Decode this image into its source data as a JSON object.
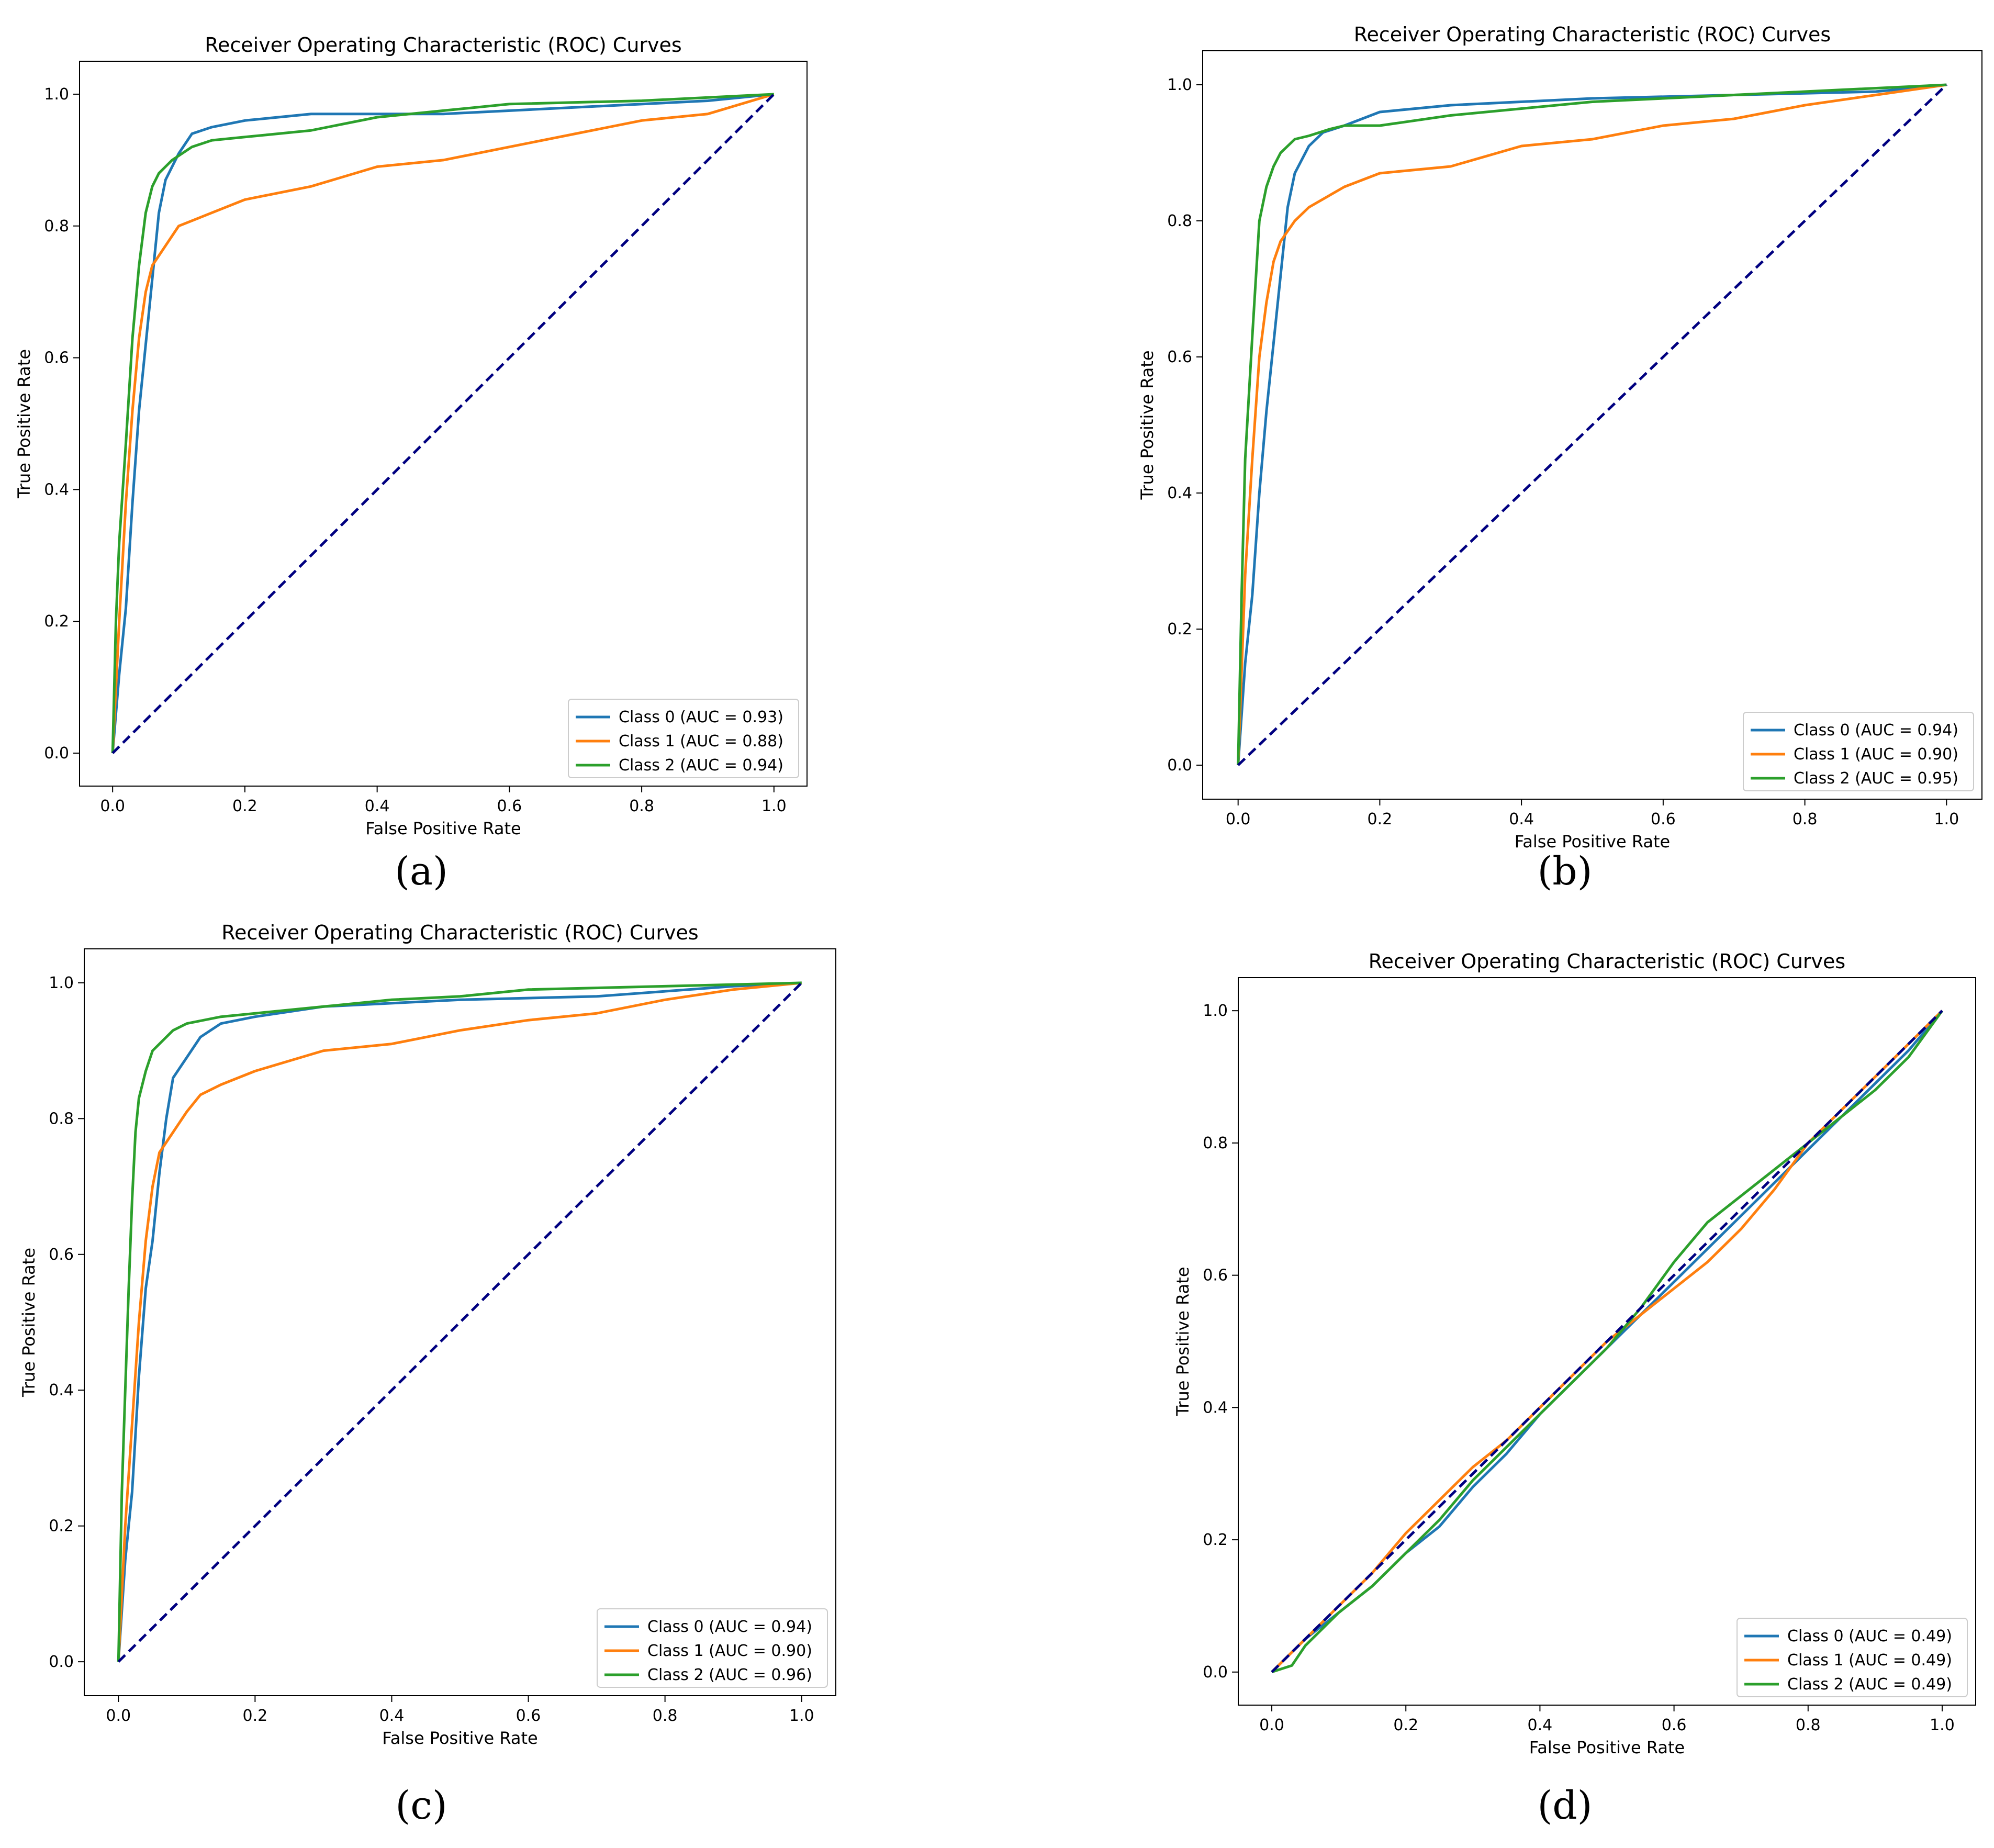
{
  "chart_data": [
    {
      "type": "line",
      "panel_label": "(a)",
      "title": "Receiver Operating Characteristic (ROC) Curves",
      "xlabel": "False Positive Rate",
      "ylabel": "True Positive Rate",
      "xlim": [
        0,
        1
      ],
      "ylim": [
        0,
        1
      ],
      "xticks": [
        "0.0",
        "0.2",
        "0.4",
        "0.6",
        "0.8",
        "1.0"
      ],
      "yticks": [
        "0.0",
        "0.2",
        "0.4",
        "0.6",
        "0.8",
        "1.0"
      ],
      "legend_position": "lower-right",
      "diagonal": {
        "x": [
          0,
          1
        ],
        "y": [
          0,
          1
        ],
        "color": "#000080",
        "style": "dashed"
      },
      "series": [
        {
          "name": "Class 0 (AUC = 0.93)",
          "color": "#1f77b4",
          "x": [
            0,
            0.01,
            0.02,
            0.03,
            0.04,
            0.05,
            0.06,
            0.07,
            0.08,
            0.1,
            0.12,
            0.15,
            0.2,
            0.3,
            0.5,
            0.7,
            0.9,
            1.0
          ],
          "y": [
            0,
            0.12,
            0.22,
            0.38,
            0.52,
            0.62,
            0.72,
            0.82,
            0.87,
            0.91,
            0.94,
            0.95,
            0.96,
            0.97,
            0.97,
            0.98,
            0.99,
            1.0
          ]
        },
        {
          "name": "Class 1 (AUC = 0.88)",
          "color": "#ff7f0e",
          "x": [
            0,
            0.01,
            0.02,
            0.03,
            0.04,
            0.05,
            0.06,
            0.08,
            0.1,
            0.15,
            0.2,
            0.3,
            0.4,
            0.5,
            0.6,
            0.7,
            0.8,
            0.9,
            1.0
          ],
          "y": [
            0,
            0.2,
            0.38,
            0.52,
            0.63,
            0.7,
            0.74,
            0.77,
            0.8,
            0.82,
            0.84,
            0.86,
            0.89,
            0.9,
            0.92,
            0.94,
            0.96,
            0.97,
            1.0
          ]
        },
        {
          "name": "Class 2 (AUC = 0.94)",
          "color": "#2ca02c",
          "x": [
            0,
            0.005,
            0.01,
            0.02,
            0.03,
            0.04,
            0.05,
            0.06,
            0.07,
            0.09,
            0.12,
            0.15,
            0.2,
            0.3,
            0.4,
            0.5,
            0.6,
            0.8,
            1.0
          ],
          "y": [
            0,
            0.2,
            0.32,
            0.47,
            0.63,
            0.74,
            0.82,
            0.86,
            0.88,
            0.9,
            0.92,
            0.93,
            0.935,
            0.945,
            0.965,
            0.975,
            0.985,
            0.99,
            1.0
          ]
        }
      ]
    },
    {
      "type": "line",
      "panel_label": "(b)",
      "title": "Receiver Operating Characteristic (ROC) Curves",
      "xlabel": "False Positive Rate",
      "ylabel": "True Positive Rate",
      "xlim": [
        0,
        1
      ],
      "ylim": [
        0,
        1
      ],
      "xticks": [
        "0.0",
        "0.2",
        "0.4",
        "0.6",
        "0.8",
        "1.0"
      ],
      "yticks": [
        "0.0",
        "0.2",
        "0.4",
        "0.6",
        "0.8",
        "1.0"
      ],
      "legend_position": "lower-right",
      "diagonal": {
        "x": [
          0,
          1
        ],
        "y": [
          0,
          1
        ],
        "color": "#000080",
        "style": "dashed"
      },
      "series": [
        {
          "name": "Class 0 (AUC = 0.94)",
          "color": "#1f77b4",
          "x": [
            0,
            0.01,
            0.02,
            0.03,
            0.04,
            0.05,
            0.06,
            0.07,
            0.08,
            0.1,
            0.12,
            0.15,
            0.2,
            0.3,
            0.5,
            0.7,
            0.9,
            1.0
          ],
          "y": [
            0,
            0.15,
            0.25,
            0.4,
            0.52,
            0.62,
            0.72,
            0.82,
            0.87,
            0.91,
            0.93,
            0.94,
            0.96,
            0.97,
            0.98,
            0.985,
            0.99,
            1.0
          ]
        },
        {
          "name": "Class 1 (AUC = 0.90)",
          "color": "#ff7f0e",
          "x": [
            0,
            0.01,
            0.02,
            0.03,
            0.04,
            0.05,
            0.06,
            0.08,
            0.1,
            0.15,
            0.2,
            0.3,
            0.4,
            0.5,
            0.6,
            0.7,
            0.8,
            0.9,
            1.0
          ],
          "y": [
            0,
            0.28,
            0.45,
            0.6,
            0.68,
            0.74,
            0.77,
            0.8,
            0.82,
            0.85,
            0.87,
            0.88,
            0.91,
            0.92,
            0.94,
            0.95,
            0.97,
            0.985,
            1.0
          ]
        },
        {
          "name": "Class 2 (AUC = 0.95)",
          "color": "#2ca02c",
          "x": [
            0,
            0.005,
            0.01,
            0.02,
            0.03,
            0.04,
            0.05,
            0.06,
            0.08,
            0.1,
            0.13,
            0.15,
            0.2,
            0.3,
            0.4,
            0.5,
            0.6,
            0.8,
            1.0
          ],
          "y": [
            0,
            0.25,
            0.45,
            0.63,
            0.8,
            0.85,
            0.88,
            0.9,
            0.92,
            0.925,
            0.935,
            0.94,
            0.94,
            0.955,
            0.965,
            0.975,
            0.98,
            0.99,
            1.0
          ]
        }
      ]
    },
    {
      "type": "line",
      "panel_label": "(c)",
      "title": "Receiver Operating Characteristic (ROC) Curves",
      "xlabel": "False Positive Rate",
      "ylabel": "True Positive Rate",
      "xlim": [
        0,
        1
      ],
      "ylim": [
        0,
        1
      ],
      "xticks": [
        "0.0",
        "0.2",
        "0.4",
        "0.6",
        "0.8",
        "1.0"
      ],
      "yticks": [
        "0.0",
        "0.2",
        "0.4",
        "0.6",
        "0.8",
        "1.0"
      ],
      "legend_position": "lower-right",
      "diagonal": {
        "x": [
          0,
          1
        ],
        "y": [
          0,
          1
        ],
        "color": "#000080",
        "style": "dashed"
      },
      "series": [
        {
          "name": "Class 0 (AUC = 0.94)",
          "color": "#1f77b4",
          "x": [
            0,
            0.01,
            0.02,
            0.03,
            0.04,
            0.05,
            0.06,
            0.07,
            0.08,
            0.1,
            0.12,
            0.15,
            0.2,
            0.3,
            0.5,
            0.7,
            0.9,
            1.0
          ],
          "y": [
            0,
            0.15,
            0.25,
            0.42,
            0.55,
            0.62,
            0.72,
            0.8,
            0.86,
            0.89,
            0.92,
            0.94,
            0.95,
            0.965,
            0.975,
            0.98,
            0.995,
            1.0
          ]
        },
        {
          "name": "Class 1 (AUC = 0.90)",
          "color": "#ff7f0e",
          "x": [
            0,
            0.01,
            0.02,
            0.03,
            0.04,
            0.05,
            0.06,
            0.08,
            0.1,
            0.12,
            0.15,
            0.2,
            0.3,
            0.4,
            0.5,
            0.6,
            0.7,
            0.8,
            0.9,
            1.0
          ],
          "y": [
            0,
            0.2,
            0.35,
            0.5,
            0.62,
            0.7,
            0.75,
            0.78,
            0.81,
            0.835,
            0.85,
            0.87,
            0.9,
            0.91,
            0.93,
            0.945,
            0.955,
            0.975,
            0.99,
            1.0
          ]
        },
        {
          "name": "Class 2 (AUC = 0.96)",
          "color": "#2ca02c",
          "x": [
            0,
            0.005,
            0.01,
            0.015,
            0.02,
            0.025,
            0.03,
            0.04,
            0.05,
            0.06,
            0.08,
            0.1,
            0.15,
            0.2,
            0.3,
            0.4,
            0.5,
            0.6,
            0.8,
            1.0
          ],
          "y": [
            0,
            0.25,
            0.4,
            0.55,
            0.68,
            0.78,
            0.83,
            0.87,
            0.9,
            0.91,
            0.93,
            0.94,
            0.95,
            0.955,
            0.965,
            0.975,
            0.98,
            0.99,
            0.995,
            1.0
          ]
        }
      ]
    },
    {
      "type": "line",
      "panel_label": "(d)",
      "title": "Receiver Operating Characteristic (ROC) Curves",
      "xlabel": "False Positive Rate",
      "ylabel": "True Positive Rate",
      "xlim": [
        0,
        1
      ],
      "ylim": [
        0,
        1
      ],
      "xticks": [
        "0.0",
        "0.2",
        "0.4",
        "0.6",
        "0.8",
        "1.0"
      ],
      "yticks": [
        "0.0",
        "0.2",
        "0.4",
        "0.6",
        "0.8",
        "1.0"
      ],
      "legend_position": "lower-right",
      "diagonal": {
        "x": [
          0,
          1
        ],
        "y": [
          0,
          1
        ],
        "color": "#000080",
        "style": "dashed"
      },
      "series": [
        {
          "name": "Class 0 (AUC = 0.49)",
          "color": "#1f77b4",
          "x": [
            0,
            0.05,
            0.1,
            0.15,
            0.2,
            0.25,
            0.3,
            0.35,
            0.4,
            0.45,
            0.5,
            0.55,
            0.6,
            0.65,
            0.7,
            0.75,
            0.8,
            0.85,
            0.9,
            0.95,
            1.0
          ],
          "y": [
            0,
            0.05,
            0.09,
            0.13,
            0.18,
            0.22,
            0.28,
            0.33,
            0.39,
            0.44,
            0.49,
            0.54,
            0.59,
            0.64,
            0.69,
            0.74,
            0.79,
            0.84,
            0.89,
            0.94,
            1.0
          ]
        },
        {
          "name": "Class 1 (AUC = 0.49)",
          "color": "#ff7f0e",
          "x": [
            0,
            0.05,
            0.1,
            0.15,
            0.2,
            0.25,
            0.3,
            0.35,
            0.4,
            0.45,
            0.5,
            0.55,
            0.6,
            0.65,
            0.7,
            0.75,
            0.8,
            0.85,
            0.9,
            0.95,
            1.0
          ],
          "y": [
            0,
            0.05,
            0.1,
            0.15,
            0.21,
            0.26,
            0.31,
            0.35,
            0.4,
            0.45,
            0.5,
            0.54,
            0.58,
            0.62,
            0.67,
            0.73,
            0.8,
            0.85,
            0.9,
            0.95,
            1.0
          ]
        },
        {
          "name": "Class 2 (AUC = 0.49)",
          "color": "#2ca02c",
          "x": [
            0,
            0.03,
            0.05,
            0.1,
            0.15,
            0.2,
            0.25,
            0.3,
            0.35,
            0.4,
            0.45,
            0.5,
            0.55,
            0.6,
            0.65,
            0.7,
            0.75,
            0.8,
            0.85,
            0.9,
            0.95,
            1.0
          ],
          "y": [
            0,
            0.01,
            0.04,
            0.09,
            0.13,
            0.18,
            0.23,
            0.29,
            0.34,
            0.39,
            0.44,
            0.49,
            0.55,
            0.62,
            0.68,
            0.72,
            0.76,
            0.8,
            0.84,
            0.88,
            0.93,
            1.0
          ]
        }
      ]
    }
  ]
}
